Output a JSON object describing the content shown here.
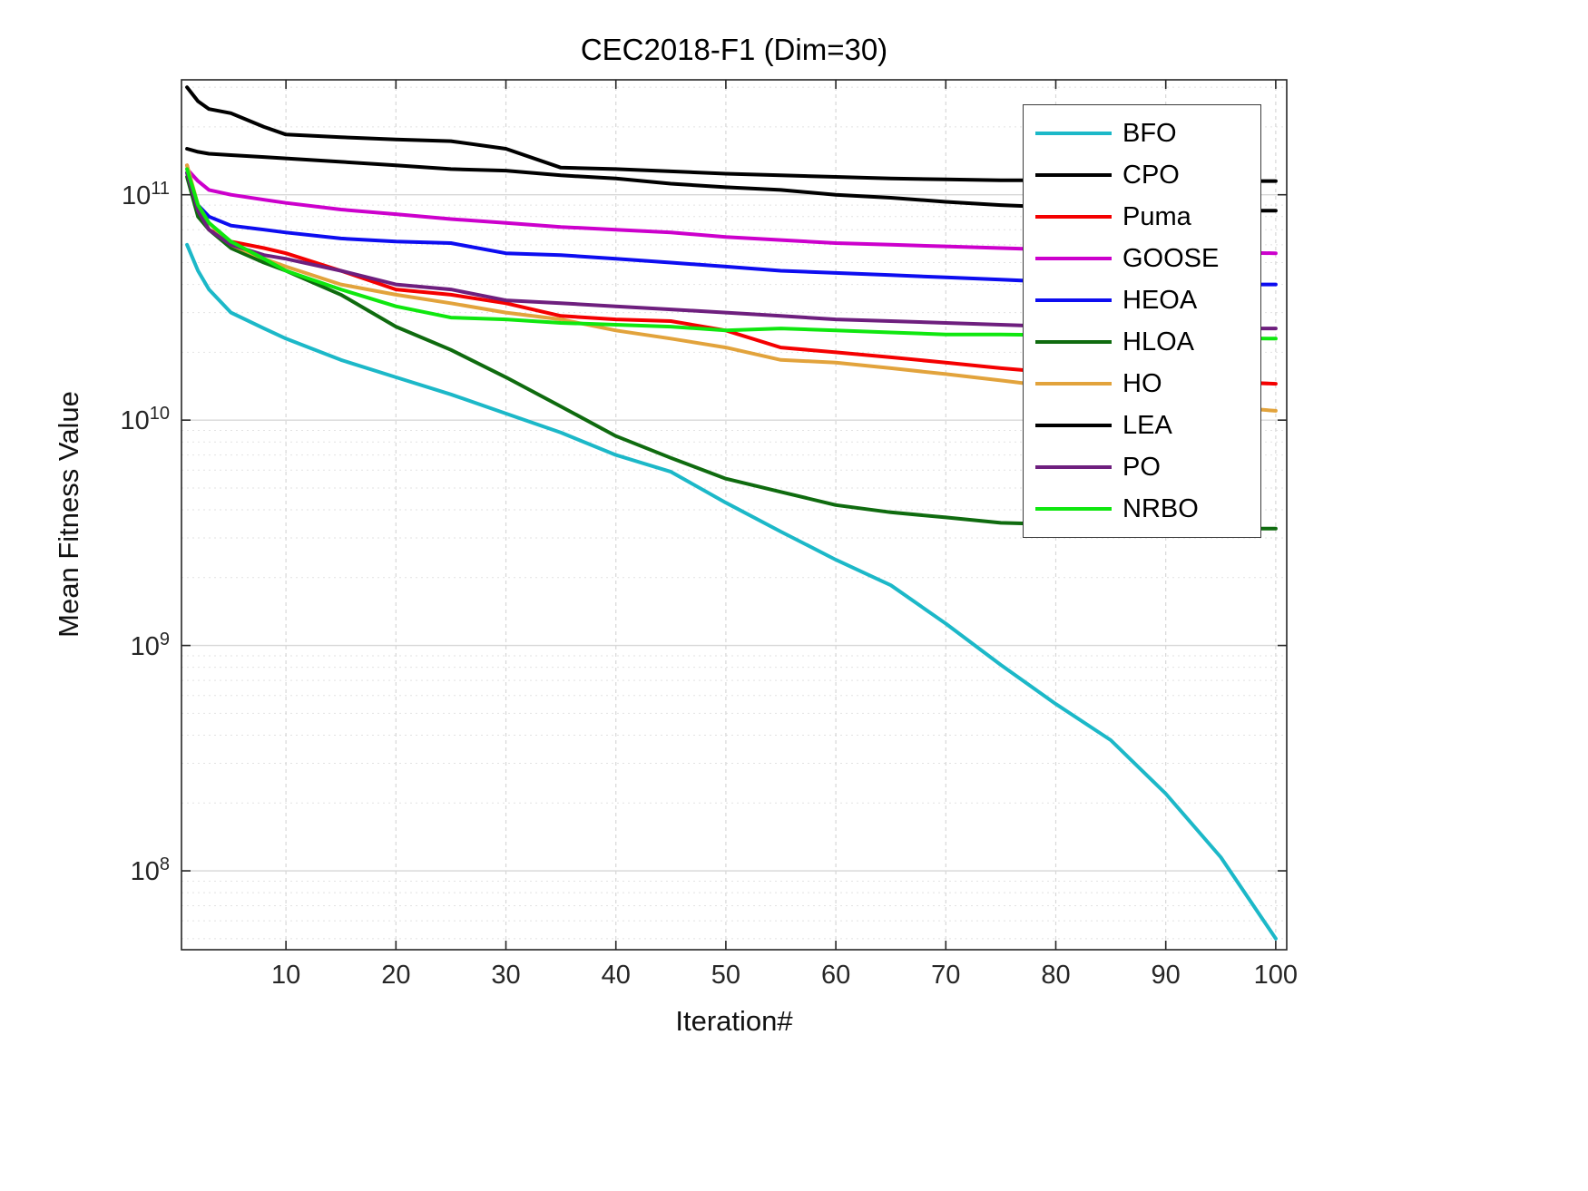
{
  "chart_data": {
    "type": "line",
    "title": "CEC2018-F1 (Dim=30)",
    "xlabel": "Iteration#",
    "ylabel": "Mean Fitness Value",
    "x_axis": {
      "min": 0.5,
      "max": 101,
      "ticks": [
        10,
        20,
        30,
        40,
        50,
        60,
        70,
        80,
        90,
        100
      ]
    },
    "y_axis": {
      "scale": "log",
      "log10_min": 7.65,
      "log10_max": 11.51,
      "tick_exponents": [
        8,
        9,
        10,
        11
      ]
    },
    "grid": true,
    "legend_position": "northeast",
    "x": [
      1,
      2,
      3,
      5,
      8,
      10,
      15,
      20,
      25,
      30,
      35,
      40,
      45,
      50,
      55,
      60,
      65,
      70,
      75,
      80,
      85,
      90,
      95,
      100
    ],
    "series": [
      {
        "name": "BFO",
        "color": "#1cb8c8",
        "y": [
          60000000000.0,
          46000000000.0,
          38000000000.0,
          30000000000.0,
          25500000000.0,
          23000000000.0,
          18500000000.0,
          15500000000.0,
          13000000000.0,
          10700000000.0,
          8800000000.0,
          7000000000.0,
          5900000000.0,
          4300000000.0,
          3200000000.0,
          2400000000.0,
          1850000000.0,
          1250000000.0,
          820000000.0,
          550000000.0,
          380000000.0,
          220000000.0,
          115000000.0,
          50000000.0
        ]
      },
      {
        "name": "CPO",
        "color": "#000000",
        "y": [
          300000000000.0,
          260000000000.0,
          240000000000.0,
          230000000000.0,
          200000000000.0,
          185000000000.0,
          180000000000.0,
          176000000000.0,
          173000000000.0,
          160000000000.0,
          132000000000.0,
          130000000000.0,
          127000000000.0,
          124000000000.0,
          122000000000.0,
          120000000000.0,
          118000000000.0,
          117000000000.0,
          116000000000.0,
          116000000000.0,
          115000000000.0,
          115000000000.0,
          115000000000.0,
          115000000000.0
        ]
      },
      {
        "name": "Puma",
        "color": "#f40000",
        "y": [
          135000000000.0,
          85000000000.0,
          70000000000.0,
          62000000000.0,
          58000000000.0,
          55000000000.0,
          46000000000.0,
          38000000000.0,
          36000000000.0,
          33000000000.0,
          29000000000.0,
          28000000000.0,
          27500000000.0,
          25000000000.0,
          21000000000.0,
          20000000000.0,
          19000000000.0,
          18000000000.0,
          17000000000.0,
          16200000000.0,
          15500000000.0,
          15000000000.0,
          14800000000.0,
          14500000000.0
        ]
      },
      {
        "name": "GOOSE",
        "color": "#cc00cc",
        "y": [
          130000000000.0,
          115000000000.0,
          105000000000.0,
          100000000000.0,
          95000000000.0,
          92000000000.0,
          86000000000.0,
          82000000000.0,
          78000000000.0,
          75000000000.0,
          72000000000.0,
          70000000000.0,
          68000000000.0,
          65000000000.0,
          63000000000.0,
          61000000000.0,
          60000000000.0,
          59000000000.0,
          58000000000.0,
          57000000000.0,
          56500000000.0,
          56000000000.0,
          55500000000.0,
          55000000000.0
        ]
      },
      {
        "name": "HEOA",
        "color": "#0d0df0",
        "y": [
          125000000000.0,
          90000000000.0,
          80000000000.0,
          73000000000.0,
          70000000000.0,
          68000000000.0,
          64000000000.0,
          62000000000.0,
          61000000000.0,
          55000000000.0,
          54000000000.0,
          52000000000.0,
          50000000000.0,
          48000000000.0,
          46000000000.0,
          45000000000.0,
          44000000000.0,
          43000000000.0,
          42000000000.0,
          41000000000.0,
          40500000000.0,
          40000000000.0,
          40000000000.0,
          40000000000.0
        ]
      },
      {
        "name": "HLOA",
        "color": "#0f6b0f",
        "y": [
          120000000000.0,
          80000000000.0,
          70000000000.0,
          58000000000.0,
          50000000000.0,
          46000000000.0,
          36000000000.0,
          26000000000.0,
          20500000000.0,
          15500000000.0,
          11500000000.0,
          8500000000.0,
          6800000000.0,
          5500000000.0,
          4800000000.0,
          4200000000.0,
          3900000000.0,
          3700000000.0,
          3500000000.0,
          3450000000.0,
          3400000000.0,
          3350000000.0,
          3300000000.0,
          3300000000.0
        ]
      },
      {
        "name": "HO",
        "color": "#e2a33c",
        "y": [
          135000000000.0,
          90000000000.0,
          75000000000.0,
          60000000000.0,
          52000000000.0,
          48000000000.0,
          40000000000.0,
          36000000000.0,
          33000000000.0,
          30000000000.0,
          28000000000.0,
          25000000000.0,
          23000000000.0,
          21000000000.0,
          18500000000.0,
          18000000000.0,
          17000000000.0,
          16000000000.0,
          15000000000.0,
          14000000000.0,
          13000000000.0,
          12000000000.0,
          11500000000.0,
          11000000000.0
        ]
      },
      {
        "name": "LEA",
        "color": "#000000",
        "y": [
          160000000000.0,
          155000000000.0,
          152000000000.0,
          150000000000.0,
          147000000000.0,
          145000000000.0,
          140000000000.0,
          135000000000.0,
          130000000000.0,
          128000000000.0,
          122000000000.0,
          118000000000.0,
          112000000000.0,
          108000000000.0,
          105000000000.0,
          100000000000.0,
          97000000000.0,
          93000000000.0,
          90000000000.0,
          88000000000.0,
          87000000000.0,
          86000000000.0,
          85000000000.0,
          85000000000.0
        ]
      },
      {
        "name": "PO",
        "color": "#6e1f7e",
        "y": [
          125000000000.0,
          85000000000.0,
          70000000000.0,
          60000000000.0,
          54000000000.0,
          52000000000.0,
          46000000000.0,
          40000000000.0,
          38000000000.0,
          34000000000.0,
          33000000000.0,
          32000000000.0,
          31000000000.0,
          30000000000.0,
          29000000000.0,
          28000000000.0,
          27500000000.0,
          27000000000.0,
          26500000000.0,
          26000000000.0,
          25800000000.0,
          25600000000.0,
          25500000000.0,
          25500000000.0
        ]
      },
      {
        "name": "NRBO",
        "color": "#0fe70f",
        "y": [
          130000000000.0,
          90000000000.0,
          75000000000.0,
          62000000000.0,
          52000000000.0,
          46000000000.0,
          38000000000.0,
          32000000000.0,
          28500000000.0,
          28000000000.0,
          27000000000.0,
          26500000000.0,
          26000000000.0,
          25000000000.0,
          25500000000.0,
          25000000000.0,
          24500000000.0,
          24000000000.0,
          24000000000.0,
          23800000000.0,
          23500000000.0,
          23300000000.0,
          23100000000.0,
          23000000000.0
        ]
      }
    ],
    "colors": {
      "axis": "#262626",
      "major_grid": "#d7d7d7",
      "minor_grid": "#e2e2e2"
    }
  }
}
